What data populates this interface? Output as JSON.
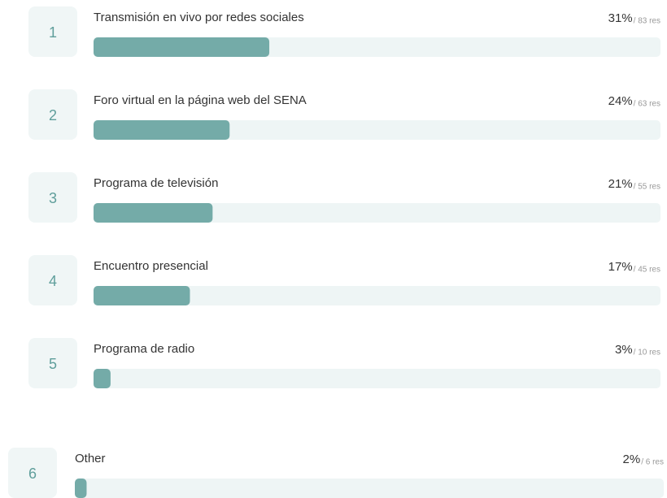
{
  "chart_data": {
    "type": "bar",
    "orientation": "horizontal",
    "ranks": [
      1,
      2,
      3,
      4,
      5,
      6
    ],
    "categories": [
      "Transmisión en vivo por redes sociales",
      "Foro virtual en la página web del SENA",
      "Programa de televisión",
      "Encuentro presencial",
      "Programa de radio",
      "Other"
    ],
    "values": [
      31,
      24,
      21,
      17,
      3,
      2
    ],
    "value_labels": [
      "31%",
      "24%",
      "21%",
      "17%",
      "3%",
      "2%"
    ],
    "count_labels": [
      "/ 83 res",
      "/ 63 res",
      "/ 55 res",
      "/ 45 res",
      "/ 10 res",
      "/ 6 res"
    ],
    "color": "#74aba8",
    "xlim": [
      0,
      100
    ]
  }
}
